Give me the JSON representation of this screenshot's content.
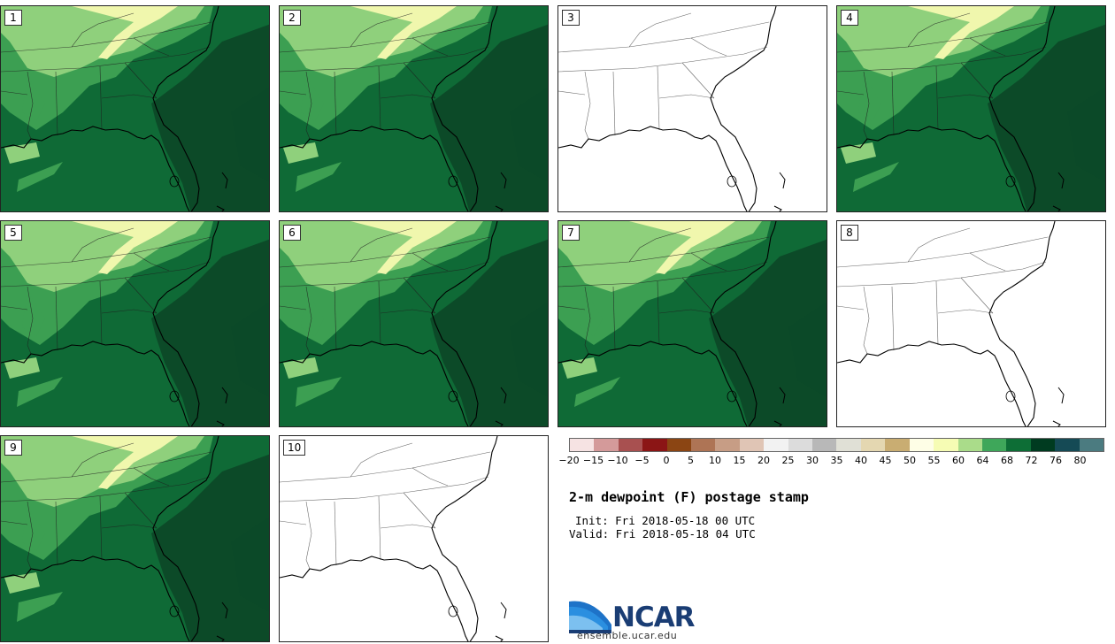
{
  "panels": [
    {
      "label": "1",
      "filled": true
    },
    {
      "label": "2",
      "filled": true
    },
    {
      "label": "3",
      "filled": false
    },
    {
      "label": "4",
      "filled": true
    },
    {
      "label": "5",
      "filled": true
    },
    {
      "label": "6",
      "filled": true
    },
    {
      "label": "7",
      "filled": true
    },
    {
      "label": "8",
      "filled": false
    },
    {
      "label": "9",
      "filled": true
    },
    {
      "label": "10",
      "filled": false
    }
  ],
  "colorbar": {
    "colors": [
      "#f6e3e3",
      "#d49a9a",
      "#a85050",
      "#8b1515",
      "#8b4513",
      "#ae7455",
      "#c79d85",
      "#e0c5b5",
      "#f2f2f2",
      "#dcdcdc",
      "#b8b8b8",
      "#e0e0d6",
      "#e4d7b1",
      "#c9ad72",
      "#fefee6",
      "#f6fcb4",
      "#aadc8a",
      "#3ea75a",
      "#0d6e36",
      "#003b20",
      "#154a55",
      "#4b7b80"
    ],
    "ticks": [
      "−20",
      "−15",
      "−10",
      "−5",
      "0",
      "5",
      "10",
      "15",
      "20",
      "25",
      "30",
      "35",
      "40",
      "45",
      "50",
      "55",
      "60",
      "64",
      "68",
      "72",
      "76",
      "80"
    ]
  },
  "colors": {
    "field_dark": "#0c4a28",
    "field_mid": "#0f6a36",
    "field_green": "#3c9f52",
    "field_light": "#8fd07c",
    "field_pale": "#f5f9b0"
  },
  "title": "2-m dewpoint (F) postage stamp",
  "init": "Init: Fri 2018-05-18 00 UTC",
  "valid": "Valid: Fri 2018-05-18 04 UTC",
  "logo": {
    "word": "NCAR",
    "url": "ensemble.ucar.edu"
  }
}
